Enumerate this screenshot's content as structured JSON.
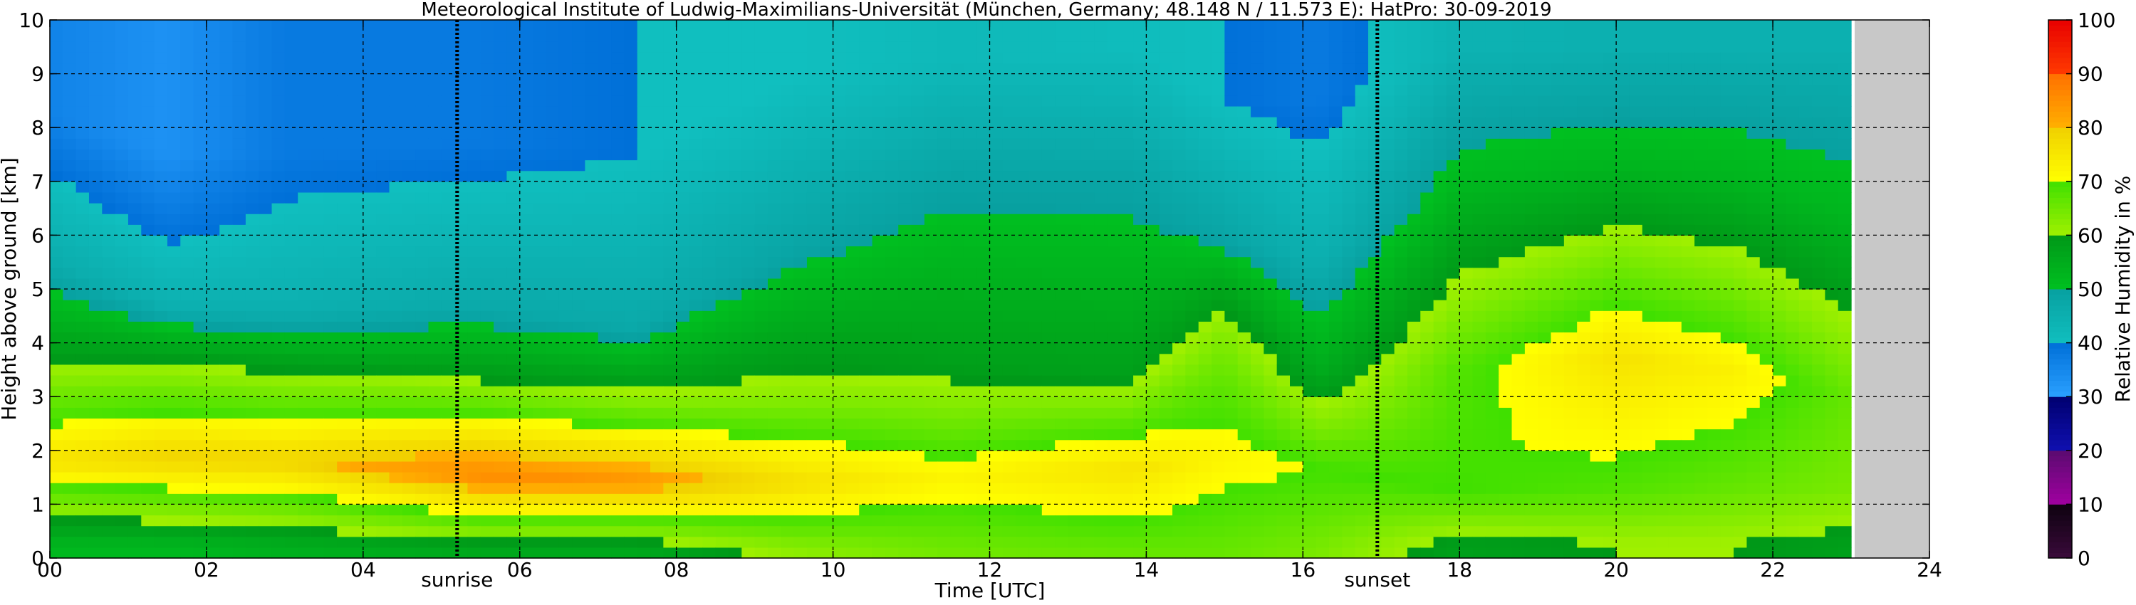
{
  "chart_data": {
    "type": "heatmap",
    "title": "Meteorological Institute of Ludwig-Maximilians-Universität (München, Germany; 48.148 N / 11.573 E):    HatPro: 30-09-2019",
    "xlabel": "Time [UTC]",
    "ylabel": "Height above ground [km]",
    "xlim": [
      0,
      24
    ],
    "ylim": [
      0,
      10
    ],
    "x_ticks": [
      "00",
      "02",
      "04",
      "06",
      "08",
      "10",
      "12",
      "14",
      "16",
      "18",
      "20",
      "22",
      "24"
    ],
    "y_ticks": [
      "0",
      "1",
      "2",
      "3",
      "4",
      "5",
      "6",
      "7",
      "8",
      "9",
      "10"
    ],
    "grid": true,
    "no_data_after_hour": 23.0,
    "colorbar": {
      "label": "Relative Humidity in %",
      "ticks": [
        "0",
        "10",
        "20",
        "30",
        "40",
        "50",
        "60",
        "70",
        "80",
        "90",
        "100"
      ],
      "range": [
        0,
        100
      ]
    },
    "markers": [
      {
        "label": "sunrise",
        "time_hour": 5.2
      },
      {
        "label": "sunset",
        "time_hour": 16.95
      }
    ],
    "humidity_profiles": [
      {
        "time_hour": 0.0,
        "boundaries_km": [
          0.4,
          3.2,
          4.5,
          6.5
        ],
        "layers_rh": [
          52,
          76,
          58,
          46,
          36
        ]
      },
      {
        "time_hour": 1.5,
        "boundaries_km": [
          0.4,
          3.3,
          4.3,
          5.0
        ],
        "layers_rh": [
          52,
          79,
          58,
          45,
          33
        ]
      },
      {
        "time_hour": 3.0,
        "boundaries_km": [
          0.4,
          3.2,
          4.2,
          5.0
        ],
        "layers_rh": [
          54,
          79,
          57,
          45,
          38
        ]
      },
      {
        "time_hour": 5.5,
        "boundaries_km": [
          0.3,
          2.8,
          3.8,
          5.5
        ],
        "layers_rh": [
          56,
          86,
          60,
          47,
          38
        ]
      },
      {
        "time_hour": 7.5,
        "boundaries_km": [
          0.3,
          2.6,
          3.6,
          5.0
        ],
        "layers_rh": [
          56,
          84,
          60,
          47,
          40
        ]
      },
      {
        "time_hour": 9.5,
        "boundaries_km": [
          0.3,
          2.5,
          3.6,
          8.0
        ],
        "layers_rh": [
          62,
          77,
          62,
          48,
          40
        ]
      },
      {
        "time_hour": 11.5,
        "boundaries_km": [
          0.3,
          2.7,
          4.5,
          8.5
        ],
        "layers_rh": [
          65,
          72,
          58,
          50,
          42
        ]
      },
      {
        "time_hour": 13.8,
        "boundaries_km": [
          0.3,
          3.0,
          3.8,
          9.0
        ],
        "layers_rh": [
          66,
          76,
          58,
          50,
          41
        ]
      },
      {
        "time_hour": 15.0,
        "boundaries_km": [
          0.3,
          3.5,
          5.0,
          7.0
        ],
        "layers_rh": [
          66,
          72,
          63,
          48,
          40
        ]
      },
      {
        "time_hour": 16.2,
        "boundaries_km": [
          0.3,
          3.0,
          4.0,
          7.0
        ],
        "layers_rh": [
          64,
          70,
          55,
          45,
          38
        ]
      },
      {
        "time_hour": 18.0,
        "boundaries_km": [
          0.5,
          2.0,
          5.0,
          9.0
        ],
        "layers_rh": [
          58,
          70,
          68,
          52,
          44
        ]
      },
      {
        "time_hour": 20.0,
        "boundaries_km": [
          0.5,
          2.0,
          5.5,
          9.0
        ],
        "layers_rh": [
          60,
          68,
          76,
          53,
          45
        ]
      },
      {
        "time_hour": 21.5,
        "boundaries_km": [
          0.5,
          2.0,
          5.0,
          9.0
        ],
        "layers_rh": [
          60,
          66,
          73,
          53,
          45
        ]
      },
      {
        "time_hour": 23.0,
        "boundaries_km": [
          0.5,
          2.0,
          4.0,
          9.0
        ],
        "layers_rh": [
          58,
          64,
          66,
          52,
          45
        ]
      }
    ]
  }
}
